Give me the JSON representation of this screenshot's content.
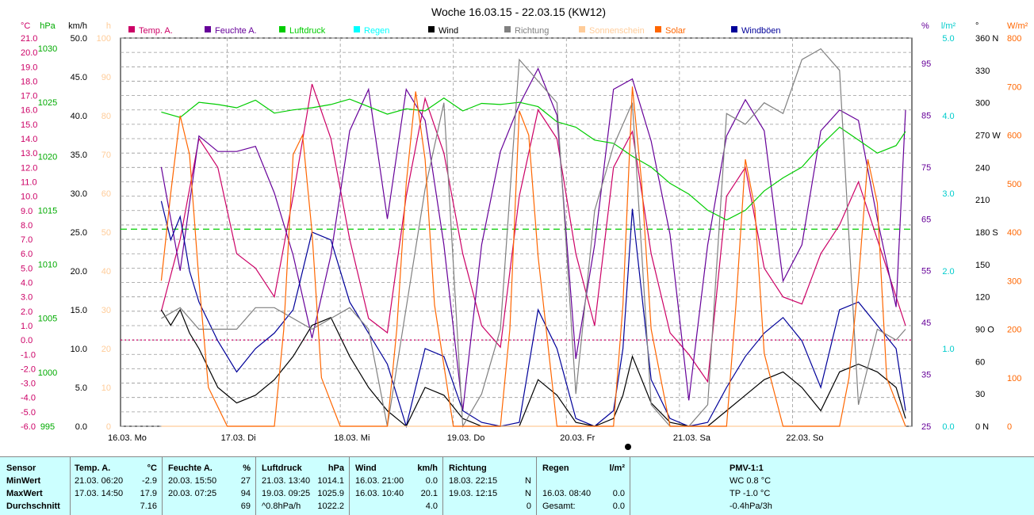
{
  "chart_data": {
    "type": "line",
    "title": "Woche 16.03.15 - 22.03.15 (KW12)",
    "x_labels": [
      "16.03. Mo",
      "17.03. Di",
      "18.03. Mi",
      "19.03. Do",
      "20.03. Fr",
      "21.03. Sa",
      "22.03. So"
    ],
    "x_range_hours": [
      0,
      168
    ],
    "axes": [
      {
        "unit": "°C",
        "color": "#cc0066",
        "ticks": [
          "21.0",
          "20.0",
          "19.0",
          "18.0",
          "17.0",
          "16.0",
          "15.0",
          "14.0",
          "13.0",
          "12.0",
          "11.0",
          "10.0",
          "9.0",
          "8.0",
          "7.0",
          "6.0",
          "5.0",
          "4.0",
          "3.0",
          "2.0",
          "1.0",
          "0.0",
          "-1.0",
          "-2.0",
          "-3.0",
          "-4.0",
          "-5.0",
          "-6.0"
        ]
      },
      {
        "unit": "hPa",
        "color": "#00aa00",
        "ticks": [
          "1030",
          "1025",
          "1020",
          "1015",
          "1010",
          "1005",
          "1000",
          "995"
        ]
      },
      {
        "unit": "km/h",
        "color": "#000000",
        "ticks": [
          "50.0",
          "45.0",
          "40.0",
          "35.0",
          "30.0",
          "25.0",
          "20.0",
          "15.0",
          "10.0",
          "5.0",
          "0.0"
        ]
      },
      {
        "unit": "h",
        "color": "#ffcc99",
        "ticks": [
          "100",
          "90",
          "80",
          "70",
          "60",
          "50",
          "40",
          "30",
          "20",
          "10",
          "0"
        ]
      },
      {
        "unit": "%",
        "color": "#660099",
        "ticks": [
          "95",
          "85",
          "75",
          "65",
          "55",
          "45",
          "35",
          "25"
        ]
      },
      {
        "unit": "l/m²",
        "color": "#00cccc",
        "ticks": [
          "5.0",
          "4.0",
          "3.0",
          "2.0",
          "1.0",
          "0.0"
        ]
      },
      {
        "unit": "°",
        "color": "#000000",
        "ticks": [
          "360 N",
          "330",
          "300",
          "270 W",
          "240",
          "210",
          "180 S",
          "150",
          "120",
          "90 O",
          "60",
          "30",
          "0 N"
        ]
      },
      {
        "unit": "W/m²",
        "color": "#ff6600",
        "ticks": [
          "800",
          "700",
          "600",
          "500",
          "400",
          "300",
          "200",
          "100",
          "0"
        ]
      }
    ],
    "legend": [
      {
        "name": "Temp. A.",
        "color": "#cc0066"
      },
      {
        "name": "Feuchte A.",
        "color": "#660099"
      },
      {
        "name": "Luftdruck",
        "color": "#00cc00"
      },
      {
        "name": "Regen",
        "color": "#00ffff"
      },
      {
        "name": "Wind",
        "color": "#000000"
      },
      {
        "name": "Richtung",
        "color": "#808080"
      },
      {
        "name": "Sonnenschein",
        "color": "#ffcc99"
      },
      {
        "name": "Solar",
        "color": "#ff6600"
      },
      {
        "name": "Windböen",
        "color": "#000099"
      }
    ],
    "reference_lines": [
      {
        "axis": "°C",
        "value": 0.0,
        "color": "#cc0066",
        "style": "dotted"
      },
      {
        "axis": "hPa",
        "value": 1013.25,
        "color": "#00cc00",
        "style": "dashed"
      }
    ],
    "series": [
      {
        "name": "Temp. A.",
        "axis": "°C",
        "color": "#cc0066",
        "x": [
          10,
          14,
          18,
          22,
          26,
          30,
          34,
          38,
          42,
          46,
          50,
          54,
          58,
          62,
          66,
          70,
          74,
          78,
          82,
          86,
          90,
          94,
          98,
          102,
          106,
          110,
          114,
          118,
          122,
          126,
          130,
          134,
          138,
          142,
          146,
          150,
          154,
          158,
          162,
          166,
          168
        ],
        "y": [
          2.0,
          7.0,
          14.0,
          12.0,
          6.0,
          5.0,
          3.0,
          10.0,
          17.8,
          14.0,
          7.0,
          1.5,
          0.5,
          10.0,
          16.8,
          13.0,
          6.0,
          1.0,
          -0.5,
          10.0,
          16.0,
          14.0,
          6.0,
          1.0,
          12.0,
          14.5,
          6.0,
          0.5,
          -1.0,
          -2.9,
          10.0,
          12.0,
          5.0,
          3.0,
          2.5,
          6.0,
          8.0,
          11.0,
          7.0,
          3.0,
          1.0
        ]
      },
      {
        "name": "Feuchte A.",
        "axis": "%",
        "color": "#660099",
        "x": [
          10,
          14,
          18,
          22,
          26,
          30,
          34,
          38,
          42,
          46,
          50,
          54,
          58,
          62,
          66,
          70,
          74,
          78,
          82,
          86,
          90,
          94,
          98,
          102,
          106,
          110,
          114,
          118,
          122,
          126,
          130,
          134,
          138,
          142,
          146,
          150,
          154,
          158,
          162,
          166,
          168
        ],
        "y": [
          75,
          55,
          81,
          78,
          78,
          79,
          70,
          58,
          42,
          58,
          82,
          90,
          65,
          90,
          84,
          60,
          28,
          60,
          78,
          87,
          94,
          85,
          38,
          60,
          90,
          92,
          80,
          62,
          30,
          60,
          81,
          88,
          82,
          53,
          60,
          82,
          86,
          84,
          65,
          48,
          86
        ]
      },
      {
        "name": "Luftdruck",
        "axis": "hPa",
        "color": "#00cc00",
        "x": [
          10,
          14,
          18,
          22,
          26,
          30,
          34,
          38,
          42,
          46,
          50,
          54,
          58,
          62,
          66,
          70,
          74,
          78,
          82,
          86,
          90,
          94,
          98,
          102,
          106,
          110,
          114,
          118,
          122,
          126,
          130,
          134,
          138,
          142,
          146,
          150,
          154,
          158,
          162,
          166,
          168
        ],
        "y": [
          1024.1,
          1023.6,
          1025.0,
          1024.8,
          1024.5,
          1025.2,
          1024.0,
          1024.3,
          1024.5,
          1024.8,
          1025.3,
          1024.6,
          1023.9,
          1024.4,
          1024.2,
          1025.4,
          1024.2,
          1024.9,
          1024.8,
          1025.0,
          1024.6,
          1023.2,
          1022.7,
          1021.5,
          1021.2,
          1020.0,
          1019.0,
          1017.5,
          1016.5,
          1015.0,
          1014.1,
          1015.0,
          1016.8,
          1018.0,
          1019.0,
          1021.0,
          1022.7,
          1021.5,
          1020.3,
          1021.0,
          1022.3
        ]
      },
      {
        "name": "Windböen",
        "axis": "km/h",
        "color": "#000099",
        "x": [
          10,
          12,
          14,
          16,
          18,
          22,
          26,
          30,
          34,
          38,
          42,
          46,
          50,
          54,
          58,
          60,
          62,
          66,
          70,
          74,
          78,
          82,
          86,
          90,
          94,
          98,
          102,
          106,
          108,
          110,
          114,
          118,
          122,
          126,
          130,
          134,
          138,
          142,
          146,
          150,
          154,
          158,
          162,
          166,
          168
        ],
        "y": [
          29,
          24,
          27,
          20,
          16,
          11,
          7,
          10,
          12,
          15,
          25,
          24,
          16,
          12,
          8,
          4,
          0,
          10,
          9,
          2,
          0.5,
          0,
          0.5,
          15,
          10,
          1,
          0,
          2,
          10,
          28,
          6,
          1,
          0,
          0.5,
          5,
          9,
          12,
          14,
          11,
          5,
          15,
          16,
          13,
          10,
          2
        ]
      },
      {
        "name": "Wind",
        "axis": "km/h",
        "color": "#000000",
        "x": [
          10,
          12,
          14,
          16,
          18,
          22,
          26,
          30,
          34,
          38,
          42,
          46,
          50,
          54,
          58,
          60,
          62,
          66,
          70,
          74,
          78,
          82,
          86,
          90,
          94,
          98,
          102,
          106,
          108,
          110,
          114,
          118,
          122,
          126,
          130,
          134,
          138,
          142,
          146,
          150,
          154,
          158,
          162,
          166,
          168
        ],
        "y": [
          15,
          13,
          15,
          12,
          10,
          5,
          3,
          4,
          6,
          9,
          13,
          14,
          9,
          5,
          2,
          1,
          0,
          5,
          4,
          1,
          0,
          0,
          0,
          6,
          4,
          0.5,
          0,
          1,
          4,
          9,
          3,
          0.5,
          0,
          0,
          2,
          4,
          6,
          7,
          5,
          2,
          7,
          8,
          7,
          5,
          1
        ]
      },
      {
        "name": "Richtung",
        "axis": "°",
        "color": "#808080",
        "x": [
          10,
          14,
          18,
          22,
          26,
          30,
          34,
          38,
          42,
          46,
          50,
          54,
          58,
          62,
          66,
          70,
          74,
          78,
          82,
          86,
          90,
          94,
          98,
          102,
          106,
          110,
          114,
          118,
          122,
          126,
          130,
          134,
          138,
          142,
          146,
          150,
          154,
          158,
          162,
          166,
          168
        ],
        "y": [
          100,
          110,
          90,
          90,
          90,
          110,
          110,
          100,
          90,
          100,
          110,
          90,
          0,
          110,
          220,
          300,
          0,
          30,
          90,
          340,
          320,
          300,
          30,
          200,
          260,
          300,
          20,
          0,
          0,
          20,
          290,
          280,
          300,
          290,
          340,
          350,
          330,
          20,
          90,
          80,
          90
        ]
      },
      {
        "name": "Sonnenschein",
        "axis": "h",
        "color": "#ffcc99",
        "x": [
          10,
          12,
          14,
          16,
          18,
          20,
          24,
          34,
          38,
          40,
          42,
          44,
          46,
          58,
          60,
          62,
          64,
          66,
          70,
          82,
          84,
          86,
          88,
          90,
          94,
          106,
          108,
          110,
          112,
          118,
          130,
          132,
          134,
          136,
          142,
          154,
          156,
          158,
          160,
          162,
          168
        ],
        "y": [
          0,
          0,
          0,
          0,
          0,
          0,
          0,
          0,
          0,
          0,
          0,
          0,
          0,
          0,
          0,
          0,
          0,
          0,
          0,
          0,
          0,
          0,
          0,
          0,
          0,
          0,
          0,
          0,
          0,
          0,
          0,
          0,
          0,
          0,
          0,
          0,
          0,
          0,
          0,
          0,
          0
        ]
      },
      {
        "name": "Solar",
        "axis": "W/m²",
        "color": "#ff6600",
        "x": [
          10,
          12,
          14,
          16,
          18,
          20,
          24,
          34,
          36,
          38,
          40,
          42,
          44,
          48,
          58,
          60,
          62,
          64,
          66,
          68,
          72,
          82,
          84,
          86,
          88,
          90,
          94,
          106,
          108,
          110,
          112,
          114,
          118,
          130,
          132,
          134,
          136,
          138,
          142,
          154,
          156,
          158,
          160,
          162,
          164,
          168
        ],
        "y": [
          300,
          480,
          640,
          560,
          300,
          80,
          0,
          0,
          200,
          560,
          600,
          400,
          100,
          0,
          0,
          200,
          500,
          690,
          550,
          250,
          0,
          0,
          200,
          650,
          600,
          350,
          0,
          0,
          250,
          700,
          500,
          200,
          0,
          0,
          250,
          550,
          450,
          150,
          0,
          0,
          100,
          300,
          550,
          460,
          100,
          0
        ]
      }
    ]
  },
  "stats": {
    "header": {
      "sensor": "Sensor",
      "temp": "Temp. A.",
      "temp_unit": "°C",
      "hum": "Feuchte A.",
      "hum_unit": "%",
      "press": "Luftdruck",
      "press_unit": "hPa",
      "wind": "Wind",
      "wind_unit": "km/h",
      "dir": "Richtung",
      "rain": "Regen",
      "rain_unit": "l/m²",
      "pmv": "PMV-1:1"
    },
    "rows": [
      {
        "label": "MinWert",
        "temp_time": "21.03.  06:20",
        "temp_val": "-2.9",
        "hum_time": "20.03.  15:50",
        "hum_val": "27",
        "press_time": "21.03.  13:40",
        "press_val": "1014.1",
        "wind_time": "16.03.  21:00",
        "wind_val": "0.0",
        "dir_time": "18.03.  22:15",
        "dir_val": "N",
        "rain_time": "",
        "rain_val": "",
        "pmv": "WC 0.8 °C"
      },
      {
        "label": "MaxWert",
        "temp_time": "17.03.  14:50",
        "temp_val": "17.9",
        "hum_time": "20.03.  07:25",
        "hum_val": "94",
        "press_time": "19.03.  09:25",
        "press_val": "1025.9",
        "wind_time": "16.03.  10:40",
        "wind_val": "20.1",
        "dir_time": "19.03.  12:15",
        "dir_val": "N",
        "rain_time": "16.03.  08:40",
        "rain_val": "0.0",
        "pmv": "TP -1.0 °C"
      },
      {
        "label": "Durchschnitt",
        "temp_time": "",
        "temp_val": "7.16",
        "hum_time": "",
        "hum_val": "69",
        "press_time": "^0.8hPa/h",
        "press_val": "1022.2",
        "wind_time": "",
        "wind_val": "4.0",
        "dir_time": "",
        "dir_val": "0",
        "rain_time": "Gesamt:",
        "rain_val": "0.0",
        "pmv": "-0.4hPa/3h"
      }
    ]
  }
}
